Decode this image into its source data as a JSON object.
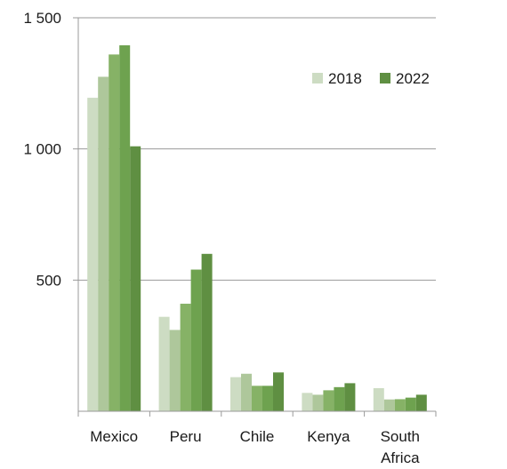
{
  "chart_data": {
    "type": "bar",
    "categories": [
      "Mexico",
      "Peru",
      "Chile",
      "Kenya",
      "South Africa"
    ],
    "category_lines": [
      [
        "Mexico"
      ],
      [
        "Peru"
      ],
      [
        "Chile"
      ],
      [
        "Kenya"
      ],
      [
        "South",
        "Africa"
      ]
    ],
    "series": [
      {
        "values": [
          1195,
          360,
          130,
          70,
          88
        ],
        "color": "#cddcc3"
      },
      {
        "values": [
          1275,
          310,
          143,
          63,
          45
        ],
        "color": "#aec79b"
      },
      {
        "values": [
          1360,
          410,
          97,
          80,
          46
        ],
        "color": "#86b266"
      },
      {
        "values": [
          1395,
          540,
          97,
          92,
          52
        ],
        "color": "#6ea24f"
      },
      {
        "values": [
          1010,
          600,
          148,
          107,
          63
        ],
        "color": "#5f8f42"
      }
    ],
    "legend": [
      {
        "label": "2018",
        "color": "#cddcc3"
      },
      {
        "label": "2022",
        "color": "#5f8f42"
      }
    ],
    "ylim": [
      0,
      1500
    ],
    "yticks": [
      500,
      1000,
      1500
    ],
    "ytick_labels": [
      "500",
      "1 000",
      "1 500"
    ],
    "title": "",
    "xlabel": "",
    "ylabel": "",
    "grid": true,
    "legend_position": "top-right"
  }
}
